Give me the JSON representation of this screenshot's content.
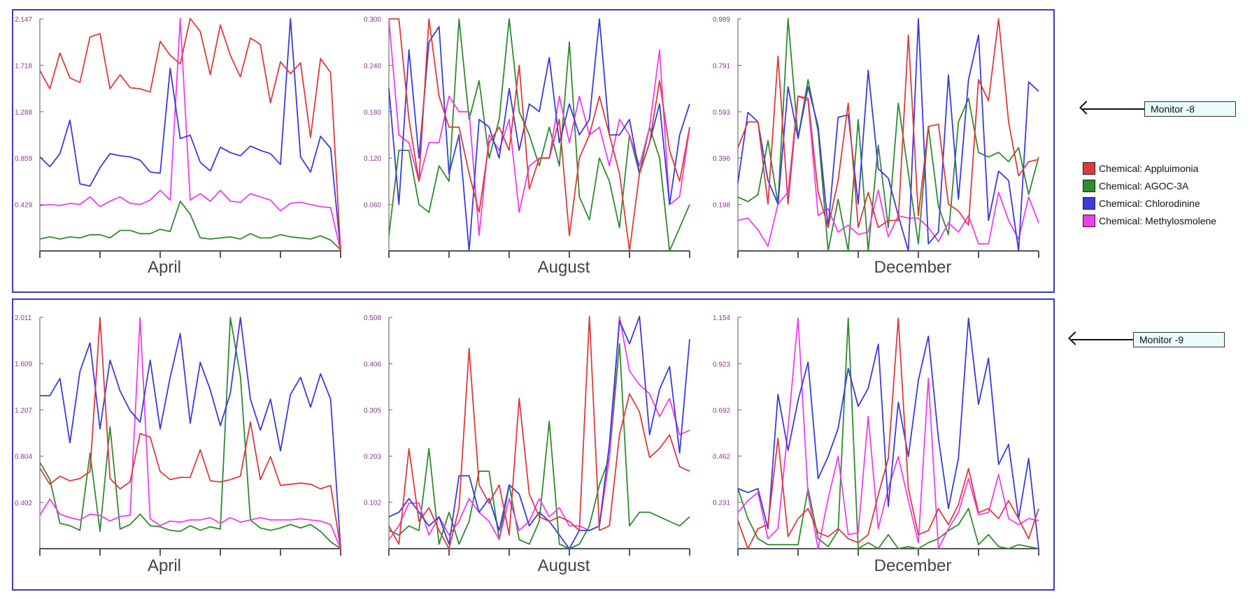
{
  "colors": {
    "Appluimonia": "#e0393b",
    "AGOC-3A": "#2e8b2e",
    "Chlorodinine": "#3a3ae0",
    "Methylosmolene": "#f03cf0",
    "frame": "#3b3bb5"
  },
  "callouts": {
    "top": "Monitor -8",
    "bottom": "Monitor -9"
  },
  "legend": [
    {
      "name": "Chemical: Appluimonia",
      "color": "#e0393b"
    },
    {
      "name": "Chemical: AGOC-3A",
      "color": "#2e8b2e"
    },
    {
      "name": "Chemical: Chlorodinine",
      "color": "#3a3ae0"
    },
    {
      "name": "Chemical: Methylosmolene",
      "color": "#f03cf0"
    }
  ],
  "chart_data": [
    {
      "type": "line",
      "monitor": "Monitor -8",
      "month": "April",
      "ylim": [
        0,
        2.147
      ],
      "yticks": [
        "0.429",
        "0.859",
        "1.288",
        "1.718",
        "2.147"
      ],
      "series": [
        {
          "name": "Appluimonia",
          "values": [
            1.67,
            1.5,
            1.83,
            1.6,
            1.56,
            1.98,
            2.01,
            1.5,
            1.63,
            1.51,
            1.5,
            1.47,
            1.94,
            1.81,
            1.73,
            2.15,
            2.03,
            1.63,
            2.09,
            1.81,
            1.61,
            1.97,
            1.91,
            1.37,
            1.75,
            1.64,
            1.74,
            1.05,
            1.78,
            1.65,
            0.0
          ]
        },
        {
          "name": "AGOC-3A",
          "values": [
            0.11,
            0.13,
            0.11,
            0.13,
            0.12,
            0.15,
            0.15,
            0.12,
            0.19,
            0.19,
            0.16,
            0.16,
            0.2,
            0.18,
            0.46,
            0.34,
            0.12,
            0.11,
            0.12,
            0.13,
            0.11,
            0.16,
            0.12,
            0.12,
            0.15,
            0.13,
            0.12,
            0.11,
            0.14,
            0.1,
            0.01
          ]
        },
        {
          "name": "Chlorodinine",
          "values": [
            0.87,
            0.78,
            0.9,
            1.21,
            0.62,
            0.6,
            0.77,
            0.9,
            0.88,
            0.87,
            0.84,
            0.73,
            0.72,
            1.69,
            1.04,
            1.07,
            0.82,
            0.74,
            0.96,
            0.91,
            0.88,
            0.97,
            0.93,
            0.9,
            0.8,
            2.15,
            0.87,
            0.73,
            1.06,
            0.95,
            0.0
          ]
        },
        {
          "name": "Methylosmolene",
          "values": [
            0.42,
            0.43,
            0.42,
            0.44,
            0.43,
            0.5,
            0.41,
            0.46,
            0.5,
            0.44,
            0.43,
            0.47,
            0.56,
            0.47,
            2.15,
            0.47,
            0.53,
            0.46,
            0.56,
            0.46,
            0.45,
            0.53,
            0.5,
            0.47,
            0.37,
            0.44,
            0.45,
            0.43,
            0.41,
            0.4,
            0.0
          ]
        }
      ]
    },
    {
      "type": "line",
      "monitor": "Monitor -8",
      "month": "August",
      "ylim": [
        0,
        0.3
      ],
      "yticks": [
        "0.060",
        "0.120",
        "0.180",
        "0.240",
        "0.300"
      ],
      "series": [
        {
          "name": "Appluimonia",
          "values": [
            0.3,
            0.3,
            0.17,
            0.09,
            0.3,
            0.2,
            0.16,
            0.16,
            0.1,
            0.05,
            0.14,
            0.16,
            0.13,
            0.24,
            0.08,
            0.12,
            0.12,
            0.17,
            0.02,
            0.12,
            0.15,
            0.2,
            0.15,
            0.1,
            0.0,
            0.1,
            0.14,
            0.22,
            0.13,
            0.09,
            0.16
          ]
        },
        {
          "name": "AGOC-3A",
          "values": [
            0.02,
            0.13,
            0.13,
            0.06,
            0.05,
            0.11,
            0.09,
            0.3,
            0.17,
            0.22,
            0.12,
            0.17,
            0.3,
            0.18,
            0.15,
            0.11,
            0.16,
            0.11,
            0.27,
            0.07,
            0.04,
            0.12,
            0.09,
            0.03,
            0.15,
            0.1,
            0.16,
            0.12,
            0.0,
            0.03,
            0.06
          ]
        },
        {
          "name": "Chlorodinine",
          "values": [
            0.21,
            0.06,
            0.26,
            0.12,
            0.27,
            0.29,
            0.1,
            0.15,
            0.0,
            0.17,
            0.16,
            0.12,
            0.21,
            0.13,
            0.19,
            0.18,
            0.25,
            0.14,
            0.19,
            0.15,
            0.17,
            0.3,
            0.15,
            0.15,
            0.17,
            0.1,
            0.14,
            0.19,
            0.06,
            0.15,
            0.19
          ]
        },
        {
          "name": "Methylosmolene",
          "values": [
            0.3,
            0.15,
            0.14,
            0.09,
            0.14,
            0.14,
            0.2,
            0.18,
            0.18,
            0.02,
            0.15,
            0.13,
            0.17,
            0.05,
            0.11,
            0.12,
            0.12,
            0.2,
            0.14,
            0.2,
            0.15,
            0.16,
            0.11,
            0.17,
            0.15,
            0.11,
            0.16,
            0.26,
            0.06,
            0.07,
            0.16
          ]
        }
      ]
    },
    {
      "type": "line",
      "monitor": "Monitor -8",
      "month": "December",
      "ylim": [
        0,
        0.989
      ],
      "yticks": [
        "0.198",
        "0.396",
        "0.593",
        "0.791",
        "0.989"
      ],
      "series": [
        {
          "name": "Appluimonia",
          "values": [
            0.44,
            0.55,
            0.55,
            0.2,
            0.83,
            0.2,
            0.66,
            0.65,
            0.25,
            0.1,
            0.3,
            0.63,
            0.1,
            0.25,
            0.1,
            0.13,
            0.13,
            0.92,
            0.15,
            0.53,
            0.54,
            0.2,
            0.17,
            0.11,
            0.73,
            0.64,
            0.99,
            0.55,
            0.32,
            0.38,
            0.39
          ]
        },
        {
          "name": "AGOC-3A",
          "values": [
            0.23,
            0.21,
            0.24,
            0.47,
            0.2,
            0.99,
            0.48,
            0.73,
            0.51,
            0.0,
            0.22,
            0.0,
            0.56,
            0.0,
            0.45,
            0.1,
            0.63,
            0.33,
            0.03,
            0.53,
            0.19,
            0.07,
            0.55,
            0.65,
            0.42,
            0.4,
            0.42,
            0.38,
            0.44,
            0.24,
            0.4
          ]
        },
        {
          "name": "Chlorodinine",
          "values": [
            0.29,
            0.59,
            0.55,
            0.3,
            0.2,
            0.7,
            0.48,
            0.7,
            0.53,
            0.1,
            0.57,
            0.58,
            0.2,
            0.77,
            0.35,
            0.31,
            0.15,
            0.0,
            0.99,
            0.03,
            0.08,
            0.75,
            0.22,
            0.73,
            0.92,
            0.13,
            0.34,
            0.3,
            0.0,
            0.72,
            0.68
          ]
        },
        {
          "name": "Methylosmolene",
          "values": [
            0.13,
            0.14,
            0.09,
            0.02,
            0.2,
            0.25,
            0.66,
            0.64,
            0.15,
            0.18,
            0.08,
            0.11,
            0.07,
            0.08,
            0.26,
            0.06,
            0.15,
            0.14,
            0.14,
            0.1,
            0.04,
            0.12,
            0.08,
            0.15,
            0.03,
            0.03,
            0.25,
            0.13,
            0.05,
            0.23,
            0.12
          ]
        }
      ]
    },
    {
      "type": "line",
      "monitor": "Monitor -9",
      "month": "April",
      "ylim": [
        0,
        2.011
      ],
      "yticks": [
        "0.402",
        "0.804",
        "1.207",
        "1.609",
        "2.011"
      ],
      "series": [
        {
          "name": "Appluimonia",
          "values": [
            0.7,
            0.56,
            0.63,
            0.59,
            0.61,
            0.67,
            2.01,
            0.61,
            0.52,
            0.58,
            1.0,
            0.97,
            0.67,
            0.6,
            0.62,
            0.62,
            0.86,
            0.59,
            0.58,
            0.6,
            0.63,
            1.1,
            0.6,
            0.8,
            0.55,
            0.56,
            0.57,
            0.56,
            0.52,
            0.55,
            0.0
          ]
        },
        {
          "name": "AGOC-3A",
          "values": [
            0.75,
            0.6,
            0.22,
            0.2,
            0.16,
            0.83,
            0.15,
            1.06,
            0.17,
            0.21,
            0.3,
            0.2,
            0.19,
            0.16,
            0.15,
            0.2,
            0.16,
            0.19,
            0.17,
            2.01,
            1.5,
            0.25,
            0.18,
            0.16,
            0.18,
            0.21,
            0.18,
            0.21,
            0.15,
            0.06,
            0.0
          ]
        },
        {
          "name": "Chlorodinine",
          "values": [
            1.33,
            1.33,
            1.48,
            0.92,
            1.54,
            1.79,
            1.04,
            1.64,
            1.37,
            1.2,
            1.1,
            1.64,
            1.04,
            1.49,
            1.87,
            1.09,
            1.62,
            1.38,
            1.07,
            1.35,
            2.01,
            1.3,
            1.03,
            1.3,
            0.85,
            1.34,
            1.49,
            1.23,
            1.52,
            1.3,
            0.0
          ]
        },
        {
          "name": "Methylosmolene",
          "values": [
            0.29,
            0.43,
            0.3,
            0.27,
            0.25,
            0.3,
            0.29,
            0.24,
            0.28,
            0.29,
            2.01,
            0.26,
            0.2,
            0.24,
            0.23,
            0.25,
            0.25,
            0.27,
            0.22,
            0.27,
            0.23,
            0.25,
            0.27,
            0.25,
            0.25,
            0.25,
            0.26,
            0.25,
            0.24,
            0.21,
            0.0
          ]
        }
      ]
    },
    {
      "type": "line",
      "monitor": "Monitor -9",
      "month": "August",
      "ylim": [
        0,
        0.508
      ],
      "yticks": [
        "0.102",
        "0.203",
        "0.305",
        "0.406",
        "0.508"
      ],
      "series": [
        {
          "name": "Appluimonia",
          "values": [
            0.05,
            0.01,
            0.22,
            0.06,
            0.09,
            0.04,
            0.0,
            0.09,
            0.44,
            0.14,
            0.1,
            0.14,
            0.03,
            0.33,
            0.12,
            0.07,
            0.06,
            0.07,
            0.06,
            0.04,
            0.51,
            0.04,
            0.05,
            0.25,
            0.34,
            0.3,
            0.2,
            0.22,
            0.25,
            0.18,
            0.17
          ]
        },
        {
          "name": "AGOC-3A",
          "values": [
            0.04,
            0.03,
            0.05,
            0.04,
            0.22,
            0.01,
            0.08,
            0.01,
            0.06,
            0.17,
            0.17,
            0.02,
            0.14,
            0.02,
            0.01,
            0.06,
            0.28,
            0.01,
            0.0,
            0.01,
            0.05,
            0.14,
            0.2,
            0.45,
            0.05,
            0.08,
            0.08,
            0.07,
            0.06,
            0.05,
            0.07
          ]
        },
        {
          "name": "Chlorodinine",
          "values": [
            0.07,
            0.08,
            0.11,
            0.08,
            0.05,
            0.07,
            0.01,
            0.16,
            0.16,
            0.08,
            0.11,
            0.04,
            0.14,
            0.12,
            0.05,
            0.08,
            0.06,
            0.03,
            0.0,
            0.04,
            0.04,
            0.05,
            0.23,
            0.5,
            0.45,
            0.51,
            0.25,
            0.35,
            0.4,
            0.21,
            0.46
          ]
        },
        {
          "name": "Methylosmolene",
          "values": [
            0.02,
            0.05,
            0.1,
            0.1,
            0.03,
            0.07,
            0.03,
            0.06,
            0.11,
            0.08,
            0.06,
            0.02,
            0.11,
            0.04,
            0.06,
            0.11,
            0.07,
            0.09,
            0.05,
            0.05,
            0.04,
            0.05,
            0.2,
            0.51,
            0.39,
            0.36,
            0.34,
            0.29,
            0.33,
            0.25,
            0.26
          ]
        }
      ]
    },
    {
      "type": "line",
      "monitor": "Monitor -9",
      "month": "December",
      "ylim": [
        0,
        1.154
      ],
      "yticks": [
        "0.231",
        "0.462",
        "0.692",
        "0.923",
        "1.154"
      ],
      "series": [
        {
          "name": "Appluimonia",
          "values": [
            0.14,
            0.0,
            0.1,
            0.12,
            0.55,
            0.06,
            0.15,
            0.2,
            0.08,
            0.06,
            0.1,
            0.05,
            0.03,
            0.07,
            0.27,
            0.45,
            1.15,
            0.3,
            0.07,
            0.09,
            0.2,
            0.12,
            0.22,
            0.4,
            0.18,
            0.2,
            0.15,
            0.24,
            0.15,
            0.05,
            0.2
          ]
        },
        {
          "name": "AGOC-3A",
          "values": [
            0.3,
            0.15,
            0.05,
            0.02,
            0.02,
            0.02,
            0.02,
            0.3,
            0.05,
            0.01,
            0.09,
            1.15,
            0.0,
            0.03,
            0.0,
            0.07,
            0.0,
            0.01,
            0.0,
            0.03,
            0.05,
            0.09,
            0.12,
            0.2,
            0.02,
            0.07,
            0.01,
            0.0,
            0.02,
            0.01,
            0.0
          ]
        },
        {
          "name": "Chlorodinine",
          "values": [
            0.3,
            0.28,
            0.3,
            0.1,
            0.77,
            0.49,
            0.74,
            0.93,
            0.35,
            0.46,
            0.6,
            0.9,
            0.71,
            0.8,
            1.02,
            0.21,
            0.73,
            0.46,
            0.84,
            1.06,
            0.55,
            0.2,
            0.45,
            1.15,
            0.72,
            0.95,
            0.42,
            0.52,
            0.15,
            0.45,
            0.0
          ]
        },
        {
          "name": "Methylosmolene",
          "values": [
            0.18,
            0.24,
            0.28,
            0.05,
            0.1,
            0.6,
            1.15,
            0.27,
            0.0,
            0.25,
            0.46,
            0.07,
            0.08,
            0.66,
            0.1,
            0.3,
            0.46,
            0.24,
            0.03,
            0.85,
            0.0,
            0.1,
            0.18,
            0.35,
            0.17,
            0.18,
            0.37,
            0.15,
            0.12,
            0.15,
            0.14
          ]
        }
      ]
    }
  ]
}
